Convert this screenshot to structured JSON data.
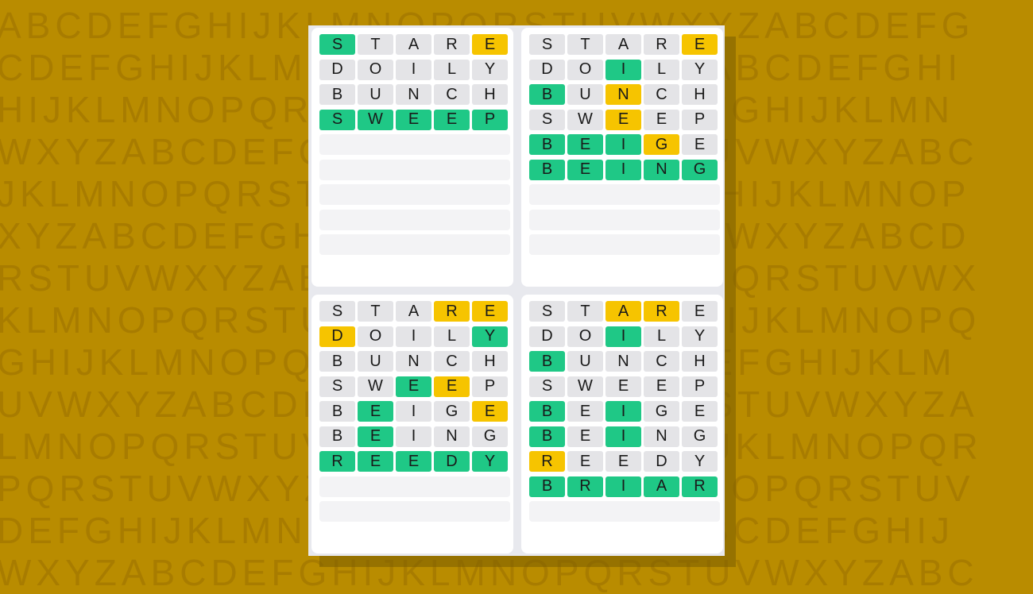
{
  "background_letters": [
    "ABCDEFGHIJKLMNOPQRSTUVWXYZABCDEFG",
    "CDEFGHIJKLMNOPQRSTUVWXYZABCDEFGHI",
    "HIJKLMNOPQRSTUVWXYZABCDEFGHIJKLMN",
    "WXYZABCDEFGHIJKLMNOPQRSTUVWXYZABC",
    "JKLMNOPQRSTUVWXYZABCDEFGHIJKLMNOP",
    "XYZABCDEFGHIJKLMNOPQRSTUVWXYZABCD",
    "RSTUVWXYZABCDEFGHIJKLMNOPQRSTUVWX",
    "KLMNOPQRSTUVWXYZABCDEFGHIJKLMNOPQ",
    "GHIJKLMNOPQRSTUVWXYZABCDEFGHIJKLM",
    "UVWXYZABCDEFGHIJKLMNOPQRSTUVWXYZA",
    "LMNOPQRSTUVWXYZABCDEFGHIJKLMNOPQR",
    "PQRSTUVWXYZABCDEFGHIJKLMNOPQRSTUV",
    "DEFGHIJKLMNOPQRSTUVWXYZABCDEFGHIJ",
    "WXYZABCDEFGHIJKLMNOPQRSTUVWXYZABC"
  ],
  "colors": {
    "green": "#1fc886",
    "yellow": "#f6c400",
    "gray": "#e4e4e7",
    "empty": "#f3f3f5",
    "background": "#b98c00"
  },
  "legend": {
    "g": "correct",
    "y": "present",
    ".": "absent"
  },
  "total_rows": 9,
  "boards": [
    {
      "rows": [
        {
          "word": "STARE",
          "states": "g...y"
        },
        {
          "word": "DOILY",
          "states": "....."
        },
        {
          "word": "BUNCH",
          "states": "....."
        },
        {
          "word": "SWEEP",
          "states": "ggggg"
        }
      ]
    },
    {
      "rows": [
        {
          "word": "STARE",
          "states": "....y"
        },
        {
          "word": "DOILY",
          "states": "..g.."
        },
        {
          "word": "BUNCH",
          "states": "g.y.."
        },
        {
          "word": "SWEEP",
          "states": "..y.."
        },
        {
          "word": "BEIGE",
          "states": "gggy."
        },
        {
          "word": "BEING",
          "states": "ggggg"
        }
      ]
    },
    {
      "rows": [
        {
          "word": "STARE",
          "states": "...yy"
        },
        {
          "word": "DOILY",
          "states": "y...g"
        },
        {
          "word": "BUNCH",
          "states": "....."
        },
        {
          "word": "SWEEP",
          "states": "..gy."
        },
        {
          "word": "BEIGE",
          "states": ".g..y"
        },
        {
          "word": "BEING",
          "states": ".g..."
        },
        {
          "word": "REEDY",
          "states": "ggggg"
        }
      ]
    },
    {
      "rows": [
        {
          "word": "STARE",
          "states": "..yy."
        },
        {
          "word": "DOILY",
          "states": "..g.."
        },
        {
          "word": "BUNCH",
          "states": "g...."
        },
        {
          "word": "SWEEP",
          "states": "....."
        },
        {
          "word": "BEIGE",
          "states": "g.g.."
        },
        {
          "word": "BEING",
          "states": "g.g.."
        },
        {
          "word": "REEDY",
          "states": "y...."
        },
        {
          "word": "BRIAR",
          "states": "ggggg"
        }
      ]
    }
  ]
}
